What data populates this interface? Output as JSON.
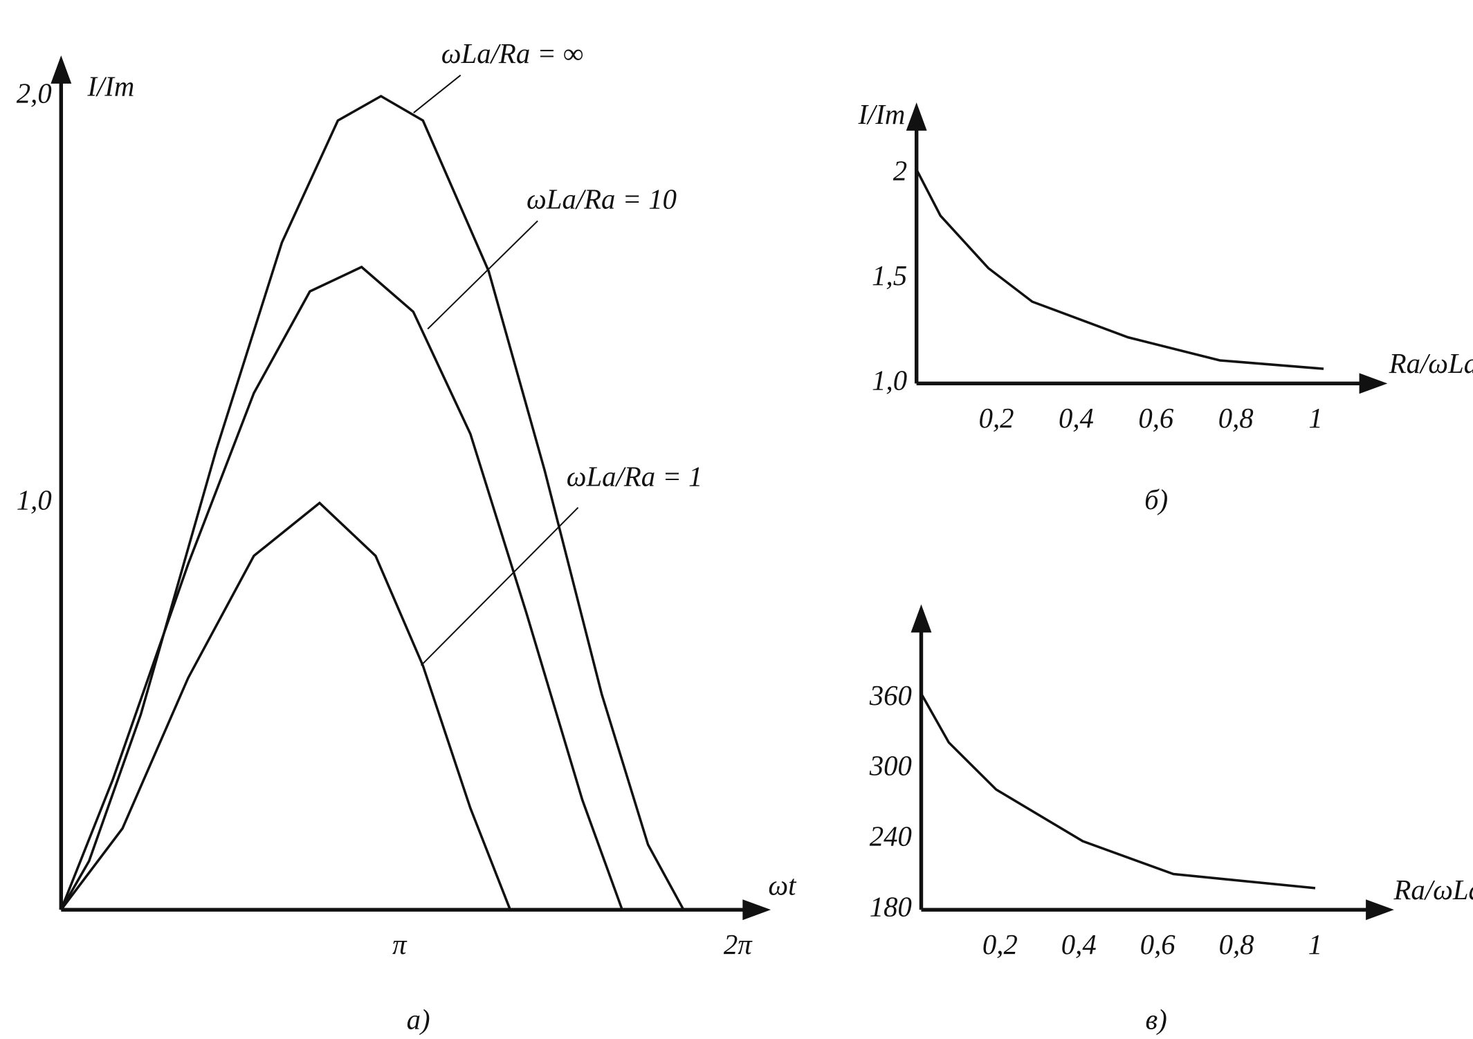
{
  "chart_data": [
    {
      "type": "line",
      "caption": "а)",
      "x_label": "ωt",
      "y_label": "I/Im",
      "xlim": [
        0,
        6.59
      ],
      "ylim": [
        0,
        2.1
      ],
      "xticks": [
        {
          "value": 3.1416,
          "label": "π"
        },
        {
          "value": 6.2832,
          "label": "2π"
        }
      ],
      "yticks": [
        {
          "value": 1,
          "label": "1,0"
        },
        {
          "value": 2,
          "label": "2,0"
        }
      ],
      "color": "#111111",
      "series": [
        {
          "name": "ωLa/Ra = ∞",
          "x": [
            0,
            0.26,
            0.74,
            1.44,
            2.05,
            2.57,
            2.97,
            3.36,
            3.97,
            4.49,
            5.02,
            5.45,
            5.78
          ],
          "values": [
            0,
            0.12,
            0.48,
            1.13,
            1.64,
            1.94,
            2.0,
            1.94,
            1.57,
            1.08,
            0.53,
            0.16,
            0
          ]
        },
        {
          "name": "ωLa/Ra = 10",
          "x": [
            0,
            0.48,
            1.18,
            1.79,
            2.31,
            2.79,
            3.27,
            3.8,
            4.32,
            4.84,
            5.21
          ],
          "values": [
            0,
            0.32,
            0.85,
            1.27,
            1.52,
            1.58,
            1.47,
            1.17,
            0.73,
            0.27,
            0
          ]
        },
        {
          "name": "ωLa/Ra = 1",
          "x": [
            0,
            0.57,
            1.18,
            1.79,
            2.4,
            2.92,
            3.36,
            3.8,
            4.17
          ],
          "values": [
            0,
            0.2,
            0.57,
            0.87,
            1.0,
            0.87,
            0.6,
            0.25,
            0
          ]
        }
      ]
    },
    {
      "type": "line",
      "caption": "б)",
      "x_label": "Ra/ωLa",
      "y_label": "I/Im",
      "xlim": [
        0,
        1.18
      ],
      "ylim": [
        1,
        2.34
      ],
      "xticks": [
        {
          "value": 0.2,
          "label": "0,2"
        },
        {
          "value": 0.4,
          "label": "0,4"
        },
        {
          "value": 0.6,
          "label": "0,6"
        },
        {
          "value": 0.8,
          "label": "0,8"
        },
        1
      ],
      "yticks": [
        {
          "value": 1,
          "label": "1,0"
        },
        {
          "value": 1.5,
          "label": "1,5"
        },
        2
      ],
      "color": "#111111",
      "x": [
        0,
        0.06,
        0.18,
        0.29,
        0.53,
        0.76,
        1.02
      ],
      "values": [
        2.02,
        1.8,
        1.55,
        1.39,
        1.22,
        1.11,
        1.07
      ]
    },
    {
      "type": "line",
      "caption": "в)",
      "x_label": "Ra/ωLa",
      "xlim": [
        0,
        1.2
      ],
      "ylim": [
        180,
        440
      ],
      "xticks": [
        {
          "value": 0.2,
          "label": "0,2"
        },
        {
          "value": 0.4,
          "label": "0,4"
        },
        {
          "value": 0.6,
          "label": "0,6"
        },
        {
          "value": 0.8,
          "label": "0,8"
        },
        1
      ],
      "yticks": [
        180,
        240,
        300,
        360
      ],
      "color": "#111111",
      "x": [
        0,
        0.07,
        0.19,
        0.41,
        0.64,
        1.0
      ],
      "values": [
        364,
        322.4,
        282.4,
        238.4,
        210.4,
        198.4
      ]
    }
  ]
}
